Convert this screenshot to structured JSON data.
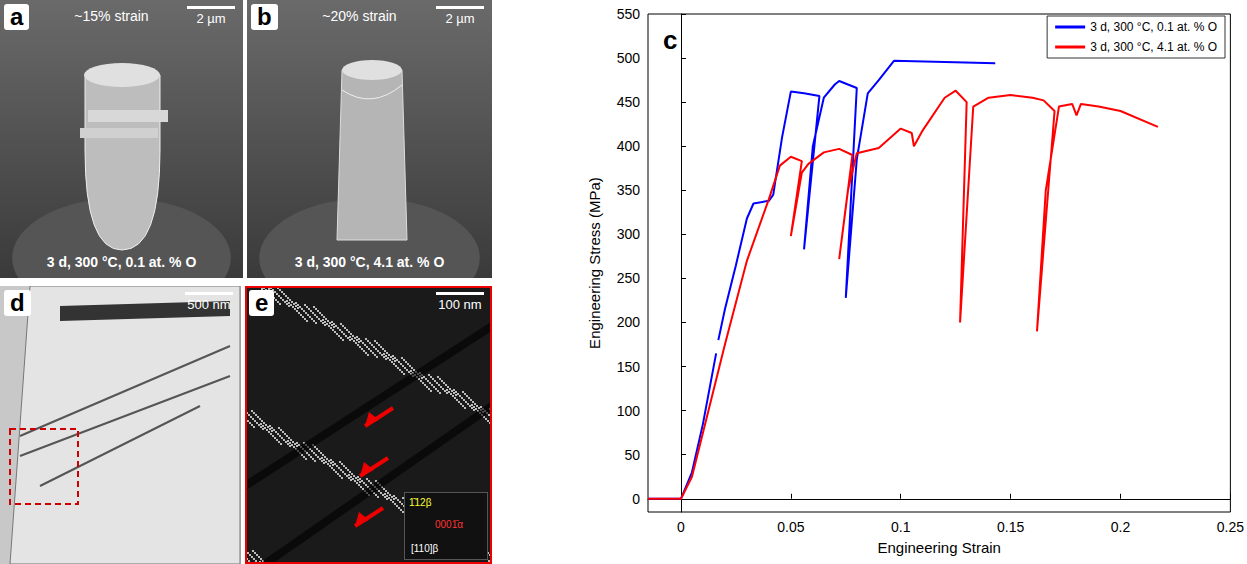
{
  "chart_data": {
    "type": "line",
    "panel_label": "c",
    "x_label": "Engineering Strain",
    "y_label": "Engineering Stress (MPa)",
    "xlim": [
      -0.015,
      0.25
    ],
    "xticks": [
      0,
      0.05,
      0.1,
      0.15,
      0.2,
      0.25
    ],
    "ylim": [
      -15,
      550
    ],
    "yticks": [
      0,
      50,
      100,
      150,
      200,
      250,
      300,
      350,
      400,
      450,
      500,
      550
    ],
    "grid": false,
    "legend": "upper right",
    "series": [
      {
        "name": "3 d, 300 °C, 0.1 at. % O",
        "color": "#0000ff",
        "x": [
          -0.015,
          0,
          0.005,
          0.01,
          0.016,
          0.0165,
          0.017,
          0.02,
          0.025,
          0.03,
          0.033,
          0.04,
          0.042,
          0.046,
          0.05,
          0.056,
          0.063,
          0.056,
          0.06,
          0.065,
          0.07,
          0.072,
          0.08,
          0.075,
          0.08,
          0.085,
          0.09,
          0.097,
          0.143
        ],
        "values": [
          0,
          0,
          30,
          85,
          165,
          null,
          180,
          215,
          265,
          318,
          335,
          338,
          345,
          410,
          462,
          460,
          457,
          283,
          400,
          455,
          470,
          474,
          466,
          228,
          385,
          460,
          475,
          497,
          494
        ]
      },
      {
        "name": "3 d, 300 °C, 4.1 at. % O",
        "color": "#ff0000",
        "x": [
          -0.015,
          0,
          0.005,
          0.01,
          0.02,
          0.03,
          0.04,
          0.045,
          0.05,
          0.055,
          0.05,
          0.055,
          0.058,
          0.065,
          0.072,
          0.078,
          0.072,
          0.076,
          0.08,
          0.09,
          0.1,
          0.105,
          0.106,
          0.11,
          0.12,
          0.125,
          0.13,
          0.127,
          0.133,
          0.14,
          0.15,
          0.16,
          0.165,
          0.17,
          0.162,
          0.166,
          0.172,
          0.178,
          0.18,
          0.182,
          0.19,
          0.2,
          0.217
        ],
        "values": [
          0,
          0,
          25,
          75,
          175,
          270,
          340,
          378,
          388,
          383,
          298,
          370,
          380,
          393,
          397,
          390,
          272,
          350,
          392,
          398,
          420,
          415,
          400,
          418,
          455,
          463,
          450,
          200,
          445,
          455,
          458,
          455,
          452,
          440,
          190,
          350,
          445,
          448,
          435,
          448,
          445,
          440,
          422
        ]
      }
    ]
  },
  "panels": [
    {
      "letter": "a",
      "top_text": "~15% strain",
      "scale_bar": "2 µm",
      "caption": "3 d, 300 °C, 0.1 at. % O"
    },
    {
      "letter": "b",
      "top_text": "~20% strain",
      "scale_bar": "2 µm",
      "caption": "3 d, 300 °C, 4.1 at. % O"
    },
    {
      "letter": "d",
      "scale_bar": "500 nm"
    },
    {
      "letter": "e",
      "scale_bar": "100 nm",
      "inset_labels": [
        {
          "text": "1̄12β",
          "color": "#ffff33"
        },
        {
          "text": "0001̄α",
          "color": "#ff3333"
        },
        {
          "text": "[110]β",
          "color": "#ffffff"
        }
      ]
    }
  ]
}
